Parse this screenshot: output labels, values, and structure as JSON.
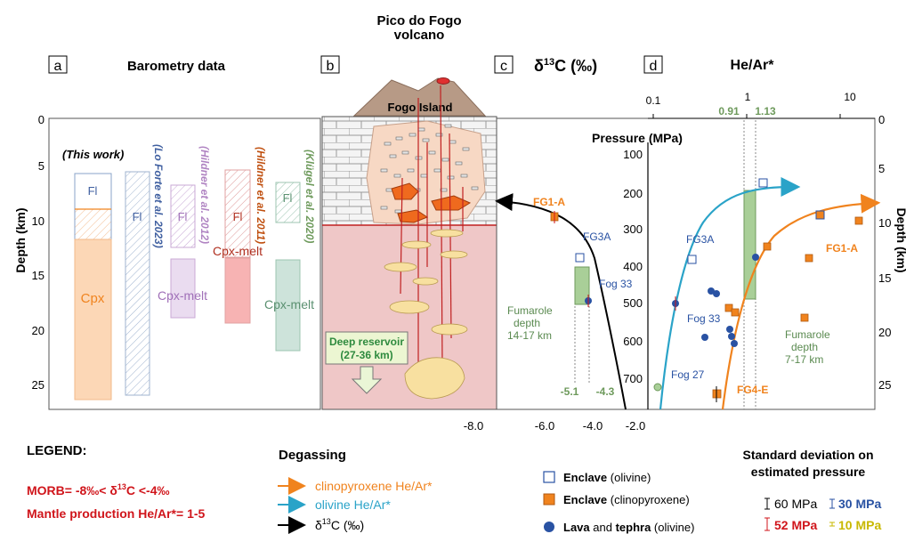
{
  "panels": {
    "a": {
      "letter": "a",
      "title": "Barometry data",
      "this_work": "(This work)",
      "fl": "Fl",
      "cpx": "Cpx",
      "cpx_melt": "Cpx-melt",
      "refs": [
        "(Lo Forte et al. 2023)",
        "(Hildner et al. 2012)",
        "(Hildner et al. 2011)",
        "(Klügel et al. 2020)"
      ],
      "depth_label": "Depth (km)",
      "depth_ticks": [
        "0",
        "5",
        "10",
        "15",
        "20",
        "25"
      ]
    },
    "b": {
      "letter": "b",
      "volcano_title_1": "Pico do Fogo",
      "volcano_title_2": "volcano",
      "island": "Fogo Island",
      "deep_reservoir_1": "Deep reservoir",
      "deep_reservoir_2": "(27-36 km)"
    },
    "c": {
      "letter": "c",
      "title_prefix": "δ",
      "title_sup": "13",
      "title_suffix": "C (‰)",
      "x_ticks": [
        "-8.0",
        "-6.0",
        "-4.0",
        "-2.0"
      ],
      "band_labels": [
        "-5.1",
        "-4.3"
      ],
      "samples": [
        "FG1-A",
        "FG3A",
        "Fog 33"
      ],
      "fumarole": [
        "Fumarole",
        "depth",
        "14-17 km"
      ]
    },
    "d": {
      "letter": "d",
      "title": "He/Ar*",
      "x_ticks": [
        "0.1",
        "1",
        "10"
      ],
      "band_labels": [
        "0.91",
        "1.13"
      ],
      "pressure_label": "Pressure (MPa)",
      "pressure_ticks": [
        "100",
        "200",
        "300",
        "400",
        "500",
        "600",
        "700"
      ],
      "depth_label": "Depth (km)",
      "depth_ticks": [
        "0",
        "5",
        "10",
        "15",
        "20",
        "25"
      ],
      "samples": [
        "FG3A",
        "Fog 33",
        "Fog 27",
        "FG4-E",
        "FG1-A"
      ],
      "fumarole": [
        "Fumarole",
        "depth",
        "7-17 km"
      ]
    }
  },
  "legend": {
    "title": "LEGEND:",
    "morb_prefix": "MORB= -8‰< δ",
    "morb_sup": "13",
    "morb_suffix": "C <-4‰",
    "mantle": "Mantle production He/Ar*= 1-5",
    "degassing_title": "Degassing",
    "cpx_line": "clinopyroxene He/Ar*",
    "ol_line": "olivine He/Ar*",
    "d13c_prefix": "δ",
    "d13c_sup": "13",
    "d13c_suffix": "C (‰)",
    "enclave_ol_bold": "Enclave",
    "enclave_ol_rest": " (olivine)",
    "enclave_cpx_bold": "Enclave",
    "enclave_cpx_rest": " (clinopyroxene)",
    "lava_bold": "Lava",
    "lava_mid": " and ",
    "lava_bold2": "tephra",
    "lava_rest": " (olivine)",
    "std_title_1": "Standard deviation on",
    "std_title_2": "estimated pressure",
    "std": [
      "60 MPa",
      "30 MPa",
      "52 MPa",
      "10 MPa"
    ]
  },
  "colors": {
    "orange": "#f0831e",
    "blue": "#2aa3c8",
    "green": "#6e9a5c",
    "red": "#d0151b",
    "navy": "#2952a3",
    "purple": "#b084c2"
  }
}
